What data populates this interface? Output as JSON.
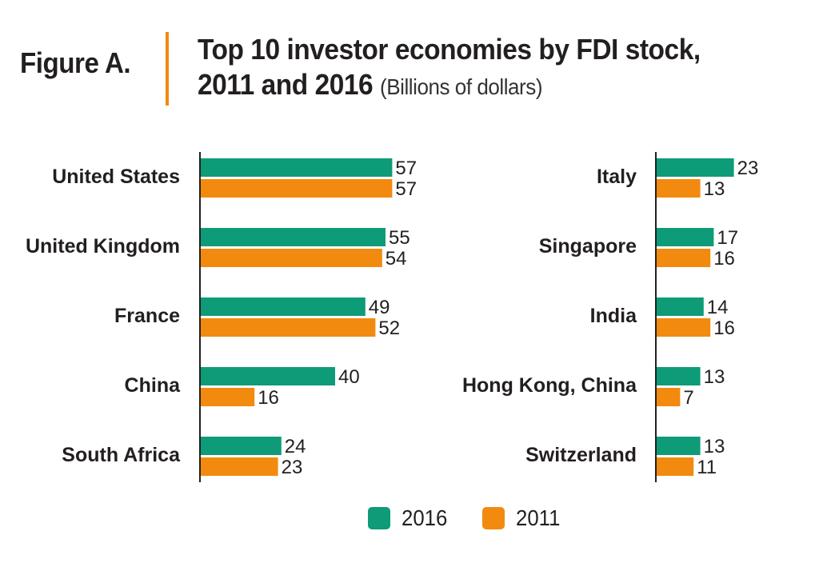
{
  "header": {
    "figure_label": "Figure A.",
    "title_line1": "Top 10 investor economies by FDI stock,",
    "title_line2": "2011 and 2016",
    "subtitle": "(Billions of dollars)"
  },
  "colors": {
    "series_2016": "#0e9b78",
    "series_2011": "#f28a0f",
    "divider": "#f28a0f",
    "axis": "#231f20",
    "text": "#231f20"
  },
  "chart_data": {
    "type": "bar",
    "orientation": "horizontal",
    "title": "Top 10 investor economies by FDI stock, 2011 and 2016",
    "subtitle": "(Billions of dollars)",
    "series_names": [
      "2016",
      "2011"
    ],
    "legend_position": "bottom-center",
    "grid": false,
    "panels": [
      {
        "categories": [
          "United States",
          "United Kingdom",
          "France",
          "China",
          "South Africa"
        ],
        "series": [
          {
            "name": "2016",
            "values": [
              57,
              55,
              49,
              40,
              24
            ]
          },
          {
            "name": "2011",
            "values": [
              57,
              54,
              52,
              16,
              23
            ]
          }
        ]
      },
      {
        "categories": [
          "Italy",
          "Singapore",
          "India",
          "Hong Kong, China",
          "Switzerland"
        ],
        "series": [
          {
            "name": "2016",
            "values": [
              23,
              17,
              14,
              13,
              13
            ]
          },
          {
            "name": "2011",
            "values": [
              13,
              16,
              16,
              7,
              11
            ]
          }
        ]
      }
    ]
  },
  "legend": {
    "label_2016": "2016",
    "label_2011": "2011"
  }
}
